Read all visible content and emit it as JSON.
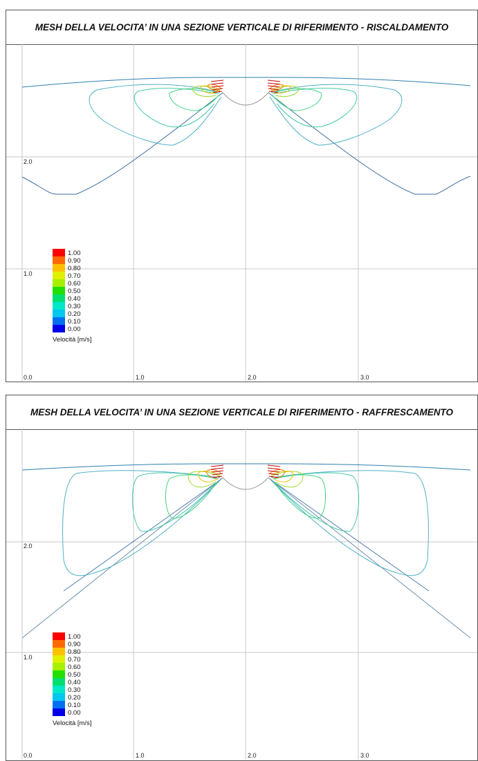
{
  "panels": [
    {
      "id": "riscaldamento",
      "title": "MESH DELLA VELOCITA’ IN UNA SEZIONE VERTICALE DI RIFERIMENTO - RISCALDAMENTO",
      "x_ticks": [
        "0.0",
        "1.0",
        "2.0",
        "3.0"
      ],
      "y_ticks": [
        "1.0",
        "2.0"
      ]
    },
    {
      "id": "raffrescamento",
      "title": "MESH DELLA VELOCITA’ IN UNA SEZIONE VERTICALE DI RIFERIMENTO - RAFFRESCAMENTO",
      "x_ticks": [
        "0.0",
        "1.0",
        "2.0",
        "3.0"
      ],
      "y_ticks": [
        "1.0",
        "2.0"
      ]
    }
  ],
  "legend": {
    "title": "Velocità [m/s]",
    "levels": [
      {
        "label": "1.00",
        "color": "#ff0000"
      },
      {
        "label": "0.90",
        "color": "#ff6a00"
      },
      {
        "label": "0.80",
        "color": "#ffc000"
      },
      {
        "label": "0.70",
        "color": "#e0f000"
      },
      {
        "label": "0.60",
        "color": "#a6f000"
      },
      {
        "label": "0.50",
        "color": "#22e000"
      },
      {
        "label": "0.40",
        "color": "#00e070"
      },
      {
        "label": "0.30",
        "color": "#00e8c8"
      },
      {
        "label": "0.20",
        "color": "#00c8f0"
      },
      {
        "label": "0.10",
        "color": "#0070f0"
      },
      {
        "label": "0.00",
        "color": "#0000e8"
      }
    ]
  }
}
